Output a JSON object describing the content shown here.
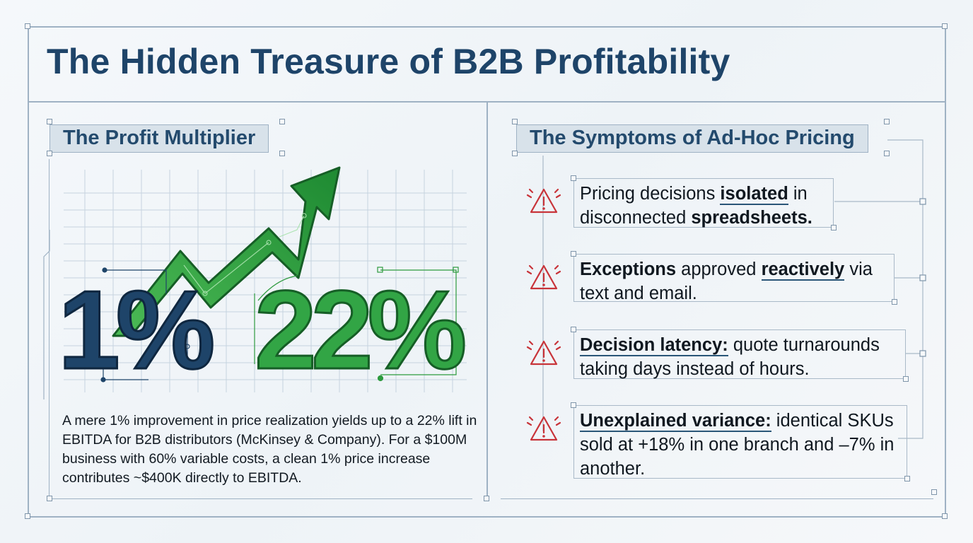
{
  "title": "The Hidden Treasure of B2B Profitability",
  "left_panel": {
    "label": "The Profit Multiplier",
    "from_value": "1%",
    "to_value": "22%",
    "caption": "A mere 1% improvement in price realization yields up to a 22% lift in EBITDA for B2B distributors (McKinsey & Company). For a $100M business with 60% variable costs, a clean 1% price increase contributes ~$400K directly to EBITDA.",
    "colors": {
      "blue": "#1e4469",
      "green": "#2d9a3e"
    }
  },
  "right_panel": {
    "label": "The Symptoms of Ad-Hoc Pricing",
    "icon": "warning-triangle-icon",
    "icon_color": "#c8343a",
    "symptoms": [
      {
        "p1": "Pricing decisions ",
        "b1": "isolated",
        "p2": " in disconnected ",
        "b2": "spreadsheets.",
        "p3": ""
      },
      {
        "p1": "",
        "b1": "Exceptions",
        "p2": " approved ",
        "b2": "reactively",
        "p3": " via text and email."
      },
      {
        "p1": "",
        "b1": "Decision latency:",
        "p2": " quote turnarounds taking days instead of hours.",
        "b2": "",
        "p3": ""
      },
      {
        "p1": "",
        "b1": "Unexplained variance:",
        "p2": " identical SKUs sold at +18% in one branch and –7% in another.",
        "b2": "",
        "p3": ""
      }
    ]
  }
}
